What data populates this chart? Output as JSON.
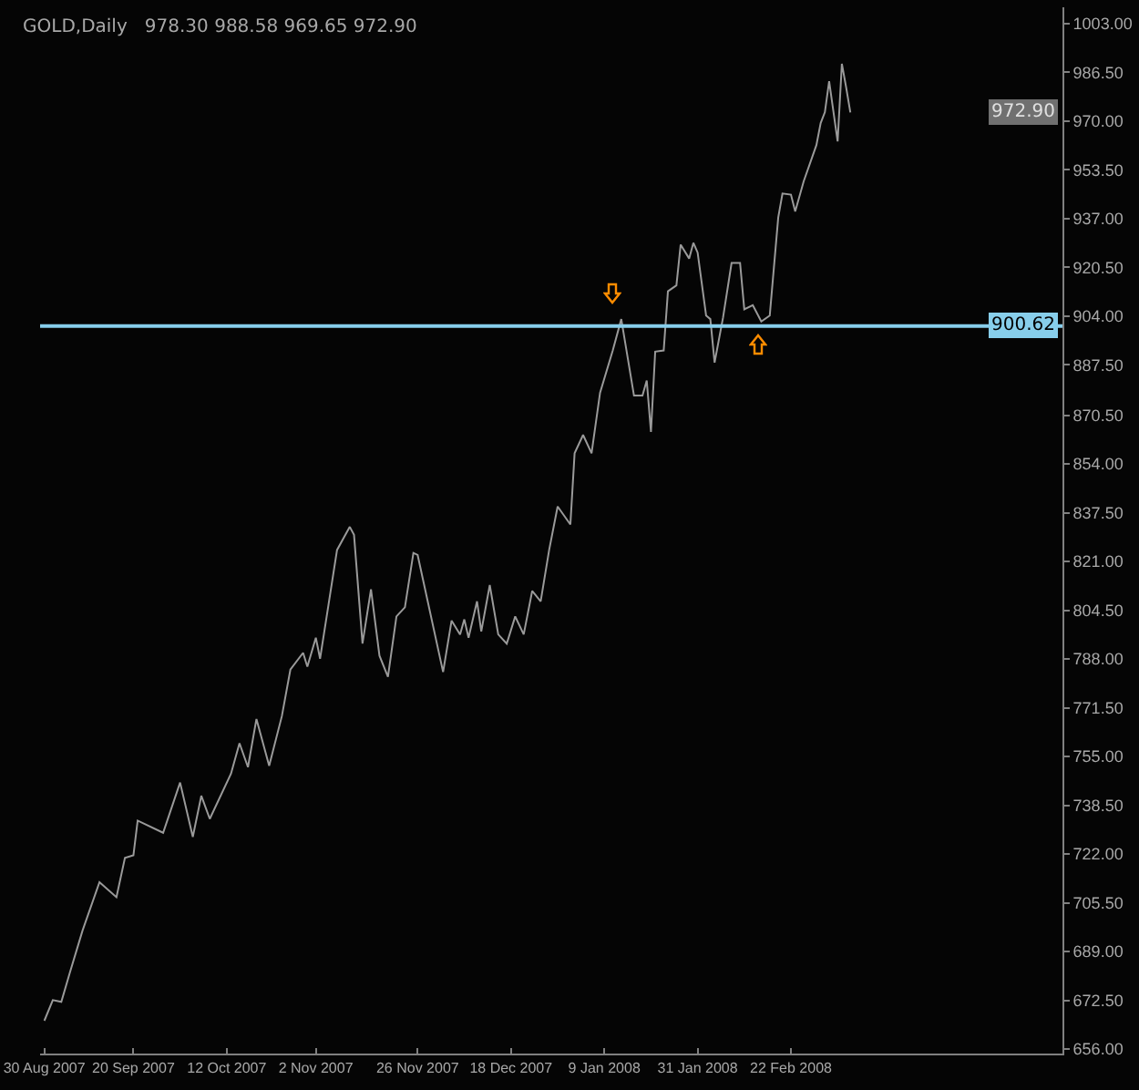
{
  "chart_data": {
    "type": "line",
    "title": "GOLD,Daily   978.30 988.58 969.65 972.90",
    "x": [
      "2007-08-30",
      "2007-09-01",
      "2007-09-03",
      "2007-09-05",
      "2007-09-08",
      "2007-09-12",
      "2007-09-16",
      "2007-09-18",
      "2007-09-20",
      "2007-09-21",
      "2007-09-27",
      "2007-10-01",
      "2007-10-04",
      "2007-10-06",
      "2007-10-08",
      "2007-10-13",
      "2007-10-15",
      "2007-10-17",
      "2007-10-19",
      "2007-10-22",
      "2007-10-25",
      "2007-10-27",
      "2007-10-30",
      "2007-10-31",
      "2007-11-02",
      "2007-11-03",
      "2007-11-05",
      "2007-11-07",
      "2007-11-10",
      "2007-11-11",
      "2007-11-13",
      "2007-11-15",
      "2007-11-17",
      "2007-11-19",
      "2007-11-21",
      "2007-11-23",
      "2007-11-25",
      "2007-11-26",
      "2007-12-02",
      "2007-12-04",
      "2007-12-06",
      "2007-12-07",
      "2007-12-08",
      "2007-12-10",
      "2007-12-11",
      "2007-12-13",
      "2007-12-15",
      "2007-12-17",
      "2007-12-19",
      "2007-12-21",
      "2007-12-23",
      "2007-12-25",
      "2007-12-27",
      "2007-12-29",
      "2008-01-01",
      "2008-01-02",
      "2008-01-04",
      "2008-01-06",
      "2008-01-08",
      "2008-01-11",
      "2008-01-13",
      "2008-01-16",
      "2008-01-18",
      "2008-01-19",
      "2008-01-20",
      "2008-01-21",
      "2008-01-23",
      "2008-01-24",
      "2008-01-26",
      "2008-01-27",
      "2008-01-29",
      "2008-01-30",
      "2008-01-31",
      "2008-02-02",
      "2008-02-03",
      "2008-02-04",
      "2008-02-06",
      "2008-02-08",
      "2008-02-10",
      "2008-02-11",
      "2008-02-13",
      "2008-02-15",
      "2008-02-17",
      "2008-02-19",
      "2008-02-20",
      "2008-02-22",
      "2008-02-23",
      "2008-02-25",
      "2008-02-28",
      "2008-02-29",
      "2008-03-01",
      "2008-03-02",
      "2008-03-04",
      "2008-03-05",
      "2008-03-06",
      "2008-03-07"
    ],
    "series": [
      {
        "color": "#9a9a9a",
        "values": [
          665.6,
          672.6,
          672,
          681.8,
          696.1,
          712.5,
          707.4,
          720.7,
          721.6,
          733.3,
          729.2,
          746.2,
          727.8,
          741.7,
          733.9,
          749.2,
          759.5,
          751.4,
          767.7,
          751.9,
          768.7,
          784.4,
          790.1,
          785.4,
          795.2,
          788.1,
          806.5,
          824.9,
          832.7,
          830,
          793.2,
          811.6,
          789.1,
          782,
          802.4,
          805.5,
          823.9,
          823.2,
          783.6,
          801,
          796.3,
          801.4,
          795.2,
          807.5,
          797.3,
          813,
          796.3,
          793.2,
          802.4,
          796.3,
          811,
          807.5,
          824.9,
          839.6,
          833.5,
          857.6,
          863.8,
          857.6,
          878.1,
          892.4,
          903,
          877.1,
          877.1,
          882.2,
          864.8,
          892,
          892.4,
          912.4,
          914.4,
          928.2,
          923.5,
          928.8,
          925.5,
          904.2,
          903,
          888.3,
          903.6,
          922,
          922,
          906.3,
          907.7,
          902.2,
          904.2,
          937.4,
          945.5,
          945.1,
          939.4,
          949.6,
          961.9,
          969.3,
          973,
          983.5,
          963.1,
          989.4,
          981.5,
          972.9
        ]
      }
    ],
    "xlim": [
      "2007-08-29",
      "2008-04-26"
    ],
    "xticks": [
      {
        "value": "2007-08-30",
        "label": "30 Aug 2007"
      },
      {
        "value": "2007-09-20",
        "label": "20 Sep 2007"
      },
      {
        "value": "2007-10-12",
        "label": "12 Oct 2007"
      },
      {
        "value": "2007-11-02",
        "label": "2 Nov 2007"
      },
      {
        "value": "2007-11-26",
        "label": "26 Nov 2007"
      },
      {
        "value": "2007-12-18",
        "label": "18 Dec 2007"
      },
      {
        "value": "2008-01-09",
        "label": "9 Jan 2008"
      },
      {
        "value": "2008-01-31",
        "label": "31 Jan 2008"
      },
      {
        "value": "2008-02-22",
        "label": "22 Feb 2008"
      }
    ],
    "ylim": [
      654.5,
      1008.5
    ],
    "yticks": [
      {
        "value": 656,
        "label": "656.00"
      },
      {
        "value": 672.5,
        "label": "672.50"
      },
      {
        "value": 689,
        "label": "689.00"
      },
      {
        "value": 705.5,
        "label": "705.50"
      },
      {
        "value": 722,
        "label": "722.00"
      },
      {
        "value": 738.5,
        "label": "738.50"
      },
      {
        "value": 755,
        "label": "755.00"
      },
      {
        "value": 771.5,
        "label": "771.50"
      },
      {
        "value": 788,
        "label": "788.00"
      },
      {
        "value": 804.5,
        "label": "804.50"
      },
      {
        "value": 821,
        "label": "821.00"
      },
      {
        "value": 837.5,
        "label": "837.50"
      },
      {
        "value": 854,
        "label": "854.00"
      },
      {
        "value": 870.5,
        "label": "870.50"
      },
      {
        "value": 887.5,
        "label": "887.50"
      },
      {
        "value": 904,
        "label": "904.00"
      },
      {
        "value": 920.5,
        "label": "920.50"
      },
      {
        "value": 937,
        "label": "937.00"
      },
      {
        "value": 953.5,
        "label": "953.50"
      },
      {
        "value": 970,
        "label": "970.00"
      },
      {
        "value": 986.5,
        "label": "986.50"
      },
      {
        "value": 1003,
        "label": "1003.00"
      }
    ],
    "ref_lines": [
      {
        "axis": "y",
        "value": 900.62,
        "label": "900.62",
        "color": "#87ceeb"
      }
    ],
    "annotations": [
      {
        "text": "972.90",
        "y": 972.9
      }
    ],
    "grid": false,
    "marker": "none",
    "line_style": "solid"
  }
}
